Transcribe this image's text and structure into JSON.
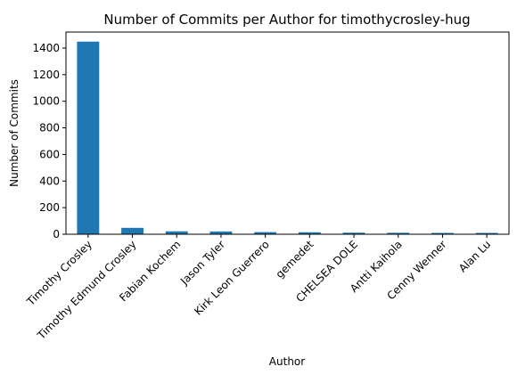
{
  "chart_data": {
    "type": "bar",
    "title": "Number of Commits per Author for timothycrosley-hug",
    "xlabel": "Author",
    "ylabel": "Number of Commits",
    "categories": [
      "Timothy Crosley",
      "Timothy Edmund Crosley",
      "Fabian Kochem",
      "Jason Tyler",
      "Kirk Leon Guerrero",
      "gemedet",
      "CHELSEA DOLE",
      "Antti Kaihola",
      "Cenny Wenner",
      "Alan Lu"
    ],
    "values": [
      1448,
      48,
      22,
      21,
      16,
      15,
      12,
      11,
      10,
      10
    ],
    "ylim": [
      0,
      1520
    ],
    "yticks": [
      0,
      200,
      400,
      600,
      800,
      1000,
      1200,
      1400
    ],
    "bar_color": "#1f77b4",
    "grid": false,
    "legend": "none"
  }
}
